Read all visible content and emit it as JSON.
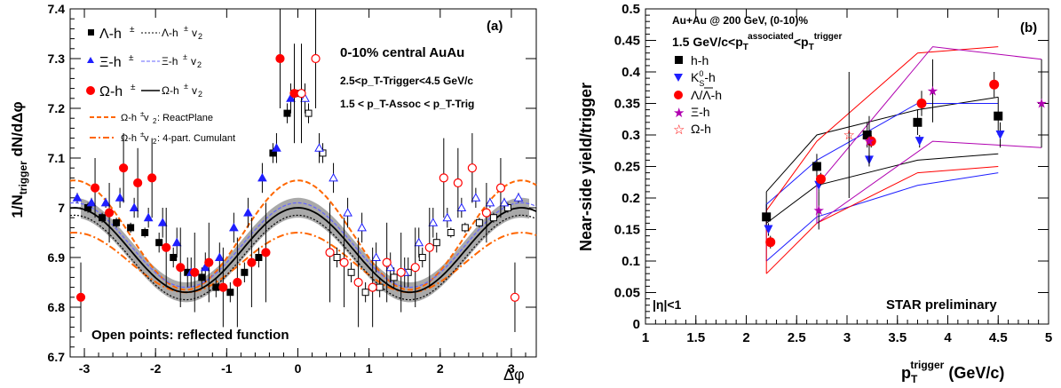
{
  "colors": {
    "black": "#000000",
    "blue": "#1f1fff",
    "red": "#ff0000",
    "purple": "#b000b0",
    "orange": "#ff6600",
    "band": "#a9a9a9",
    "lambda_fit": "#333333",
    "xi_fit": "#6464ff"
  },
  "panel_a": {
    "label": "(a)",
    "ylabel_main": "1/N",
    "ylabel_sub": "trigger",
    "ylabel_tail": " dN/dΔφ",
    "xlabel": "Δφ",
    "text_central": "0-10% central AuAu",
    "text_trig": "2.5<p_T-Trigger<4.5 GeV/c",
    "text_assoc": "1.5 < p_T-Assoc < p_T-Trig",
    "text_open": "Open points: reflected function",
    "legend": {
      "lambda_pt": "Λ-h",
      "lambda_fit": "Λ-h",
      "xi_pt": "Ξ-h",
      "xi_fit": "Ξ-h",
      "omega_pt": "Ω-h",
      "omega_fit": "Ω-h",
      "pm": "±",
      "v2": "v",
      "two": "2",
      "rp": "Ω-h",
      "rp_tail": " v",
      "rp_end": ": ReactPlane",
      "cu": "Ω-h",
      "cu_tail": " v",
      "cu_end": ": 4-part. Cumulant"
    }
  },
  "panel_b": {
    "label": "(b)",
    "ylabel": "Near-side yield/trigger",
    "xlabel_main": "p",
    "xlabel_sub": "T",
    "xlabel_sup": "trigger",
    "xlabel_tail": " (GeV/c)",
    "title1": "Au+Au @ 200 GeV, (0-10)%",
    "title2_a": "1.5 GeV/c<p",
    "title2_sub": "T",
    "title2_sup": "associated",
    "title2_b": "<p",
    "title2_sub2": "T",
    "title2_sup2": "trigger",
    "eta": "|η|<1",
    "star": "STAR preliminary",
    "legend": [
      "h-h",
      "K",
      "Λ/Λ-h",
      "Ξ-h",
      "Ω-h"
    ],
    "k0_sup": "0",
    "k0_sub": "S",
    "k0_tail": "-h"
  },
  "chart_data": [
    {
      "type": "scatter",
      "xlabel": "Δφ",
      "ylabel": "1/N_trigger dN/dΔφ",
      "xlim": [
        -3.2,
        3.35
      ],
      "ylim": [
        6.7,
        7.4
      ],
      "xticks": [
        -3,
        -2,
        -1,
        0,
        1,
        2,
        3
      ],
      "yticks": [
        6.7,
        6.8,
        6.9,
        7,
        7.1,
        7.2,
        7.3,
        7.4
      ],
      "model": {
        "mean": 6.915,
        "amp": 0.085,
        "band": 0.02,
        "rp_mean": 6.945,
        "rp_amp": 0.11,
        "cu_mean": 6.89,
        "cu_amp": 0.06,
        "lam_offset": -0.015,
        "xi_offset": 0.01
      },
      "series": [
        {
          "name": "Λ-h±",
          "marker": "square",
          "color": "black",
          "x": [
            -2.95,
            -2.75,
            -2.55,
            -2.35,
            -2.15,
            -1.95,
            -1.75,
            -1.55,
            -1.35,
            -1.15,
            -0.95,
            -0.75,
            -0.55,
            -0.35,
            -0.15,
            0.05
          ],
          "y": [
            7.0,
            6.98,
            6.97,
            6.96,
            6.95,
            6.93,
            6.9,
            6.87,
            6.86,
            6.84,
            6.83,
            6.87,
            6.9,
            7.11,
            7.19,
            7.23
          ],
          "err": [
            0.01,
            0.01,
            0.01,
            0.01,
            0.01,
            0.02,
            0.02,
            0.03,
            0.02,
            0.02,
            0.02,
            0.02,
            0.02,
            0.02,
            0.02,
            0.02
          ]
        },
        {
          "name": "Ξ-h±",
          "marker": "triangle",
          "color": "blue",
          "x": [
            -3.1,
            -2.9,
            -2.7,
            -2.5,
            -2.3,
            -2.1,
            -1.9,
            -1.7,
            -1.5,
            -1.3,
            -1.1,
            -0.9,
            -0.7,
            -0.5,
            -0.3,
            -0.1
          ],
          "y": [
            7.02,
            7.01,
            7.01,
            7.02,
            7.0,
            6.98,
            6.97,
            6.93,
            6.87,
            6.88,
            6.9,
            6.96,
            6.99,
            7.06,
            7.12,
            7.22
          ],
          "err": [
            0.01,
            0.01,
            0.01,
            0.02,
            0.02,
            0.02,
            0.03,
            0.03,
            0.03,
            0.03,
            0.03,
            0.03,
            0.03,
            0.03,
            0.03,
            0.03
          ]
        },
        {
          "name": "Ω-h±",
          "marker": "circle",
          "color": "red",
          "x": [
            -3.05,
            -2.85,
            -2.65,
            -2.45,
            -2.25,
            -2.05,
            -1.85,
            -1.65,
            -1.45,
            -1.25,
            -1.05,
            -0.85,
            -0.65,
            -0.45,
            -0.25,
            -0.05
          ],
          "y": [
            6.82,
            7.04,
            6.99,
            7.08,
            7.05,
            7.06,
            6.92,
            6.88,
            6.87,
            6.89,
            6.84,
            6.85,
            6.89,
            6.91,
            7.3,
            7.23
          ],
          "err": [
            0.07,
            0.06,
            0.06,
            0.07,
            0.07,
            0.08,
            0.08,
            0.08,
            0.08,
            0.08,
            0.08,
            0.09,
            0.09,
            0.1,
            0.1,
            0.1
          ]
        }
      ]
    },
    {
      "type": "scatter",
      "xlabel": "p_T^trigger (GeV/c)",
      "ylabel": "Near-side yield/trigger",
      "xlim": [
        1,
        5
      ],
      "ylim": [
        0,
        0.5
      ],
      "xticks": [
        1,
        1.5,
        2,
        2.5,
        3,
        3.5,
        4,
        4.5,
        5
      ],
      "yticks": [
        0,
        0.05,
        0.1,
        0.15,
        0.2,
        0.25,
        0.3,
        0.35,
        0.4,
        0.45,
        0.5
      ],
      "series": [
        {
          "name": "h-h",
          "marker": "square",
          "color": "black",
          "x": [
            2.2,
            2.7,
            3.2,
            3.7,
            4.5
          ],
          "y": [
            0.17,
            0.25,
            0.3,
            0.32,
            0.33
          ],
          "err": [
            0.02,
            0.02,
            0.02,
            0.02,
            0.03
          ]
        },
        {
          "name": "K0S-h",
          "marker": "triangle-down",
          "color": "blue",
          "x": [
            2.22,
            2.72,
            3.22,
            3.72,
            4.52
          ],
          "y": [
            0.15,
            0.22,
            0.26,
            0.29,
            0.3
          ],
          "err": [
            0.01,
            0.01,
            0.01,
            0.01,
            0.02
          ]
        },
        {
          "name": "Λ/Λ-h",
          "marker": "circle",
          "color": "red",
          "x": [
            2.24,
            2.74,
            3.24,
            3.74,
            4.46
          ],
          "y": [
            0.13,
            0.23,
            0.29,
            0.35,
            0.38
          ],
          "err": [
            0.01,
            0.01,
            0.01,
            0.02,
            0.02
          ]
        },
        {
          "name": "Ξ-h",
          "marker": "star",
          "color": "purple",
          "x": [
            2.72,
            3.22,
            3.85,
            4.93
          ],
          "y": [
            0.18,
            0.29,
            0.37,
            0.35
          ],
          "err": [
            0.03,
            0.04,
            0.05,
            0.07
          ]
        },
        {
          "name": "Ω-h",
          "marker": "star-open",
          "color": "red",
          "x": [
            3.02
          ],
          "y": [
            0.3
          ],
          "err": [
            0.1
          ]
        }
      ],
      "bands": [
        {
          "color": "black",
          "x": [
            2.2,
            2.7,
            3.7,
            4.5
          ],
          "lo": [
            0.16,
            0.22,
            0.26,
            0.27
          ],
          "hi": [
            0.21,
            0.3,
            0.34,
            0.36
          ]
        },
        {
          "color": "blue",
          "x": [
            2.2,
            2.7,
            3.7,
            4.5
          ],
          "lo": [
            0.1,
            0.17,
            0.22,
            0.24
          ],
          "hi": [
            0.19,
            0.26,
            0.35,
            0.35
          ]
        },
        {
          "color": "red",
          "x": [
            2.2,
            2.7,
            3.7,
            4.5
          ],
          "lo": [
            0.08,
            0.16,
            0.24,
            0.25
          ],
          "hi": [
            0.18,
            0.29,
            0.43,
            0.44
          ]
        },
        {
          "color": "purple",
          "x": [
            2.7,
            3.85,
            4.93
          ],
          "lo": [
            0.16,
            0.29,
            0.28
          ],
          "hi": [
            0.22,
            0.44,
            0.42
          ]
        }
      ]
    }
  ]
}
